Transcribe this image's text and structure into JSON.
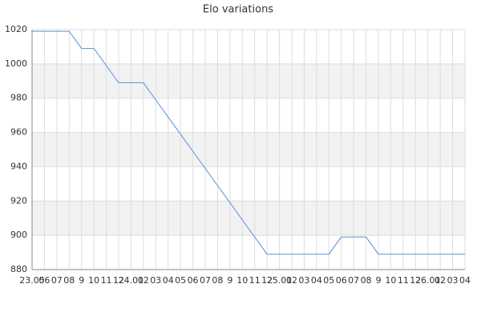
{
  "chart_data": {
    "type": "line",
    "title": "Elo variations",
    "categories": [
      "23.05",
      "06",
      "07",
      "08",
      "9",
      "10",
      "11",
      "12",
      "24.01",
      "02",
      "03",
      "04",
      "05",
      "06",
      "07",
      "08",
      "9",
      "10",
      "11",
      "12",
      "25.01",
      "02",
      "03",
      "04",
      "05",
      "06",
      "07",
      "08",
      "9",
      "10",
      "11",
      "12",
      "26.01",
      "02",
      "03",
      "04"
    ],
    "values": [
      1019,
      1019,
      1019,
      1019,
      1009,
      1009,
      999,
      989,
      989,
      989,
      979,
      969,
      959,
      949,
      939,
      929,
      919,
      909,
      899,
      889,
      889,
      889,
      889,
      889,
      889,
      899,
      899,
      899,
      889,
      889,
      889,
      889,
      889,
      889,
      889,
      889
    ],
    "color": "#5b8fd9",
    "ylim": [
      880,
      1020
    ],
    "yticks": [
      880,
      900,
      920,
      940,
      960,
      980,
      1000,
      1020
    ],
    "grid": true
  }
}
